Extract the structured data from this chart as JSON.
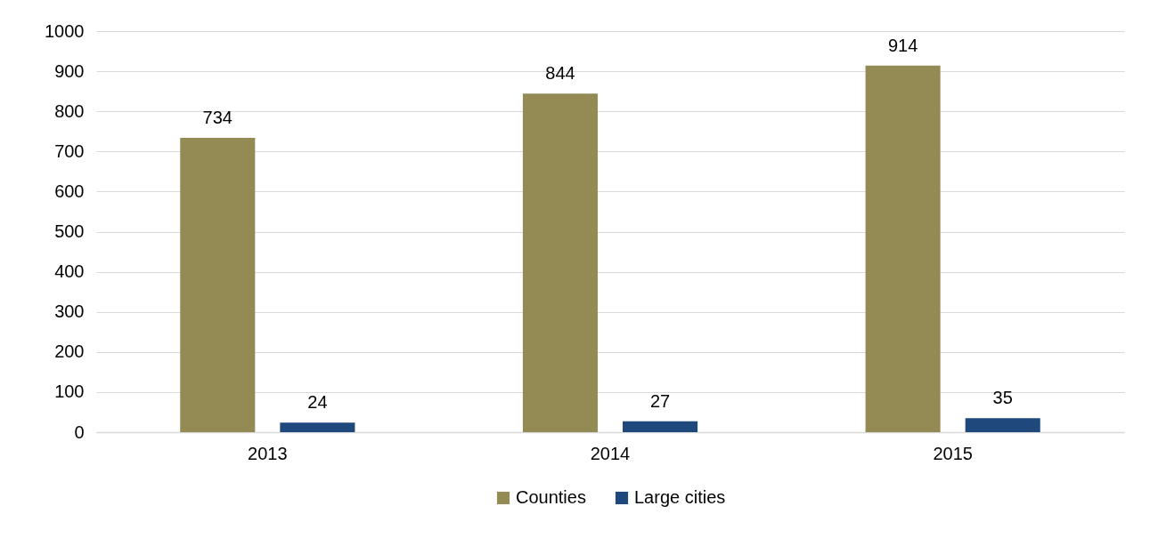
{
  "chart_data": {
    "type": "bar",
    "categories": [
      "2013",
      "2014",
      "2015"
    ],
    "series": [
      {
        "name": "Counties",
        "color": "#948b54",
        "values": [
          734,
          844,
          914
        ]
      },
      {
        "name": "Large cities",
        "color": "#1f497d",
        "values": [
          24,
          27,
          35
        ]
      }
    ],
    "ylim": [
      0,
      1000
    ],
    "yticks": [
      0,
      100,
      200,
      300,
      400,
      500,
      600,
      700,
      800,
      900,
      1000
    ],
    "grid": "y",
    "legend": "bottom",
    "data_labels": true
  }
}
